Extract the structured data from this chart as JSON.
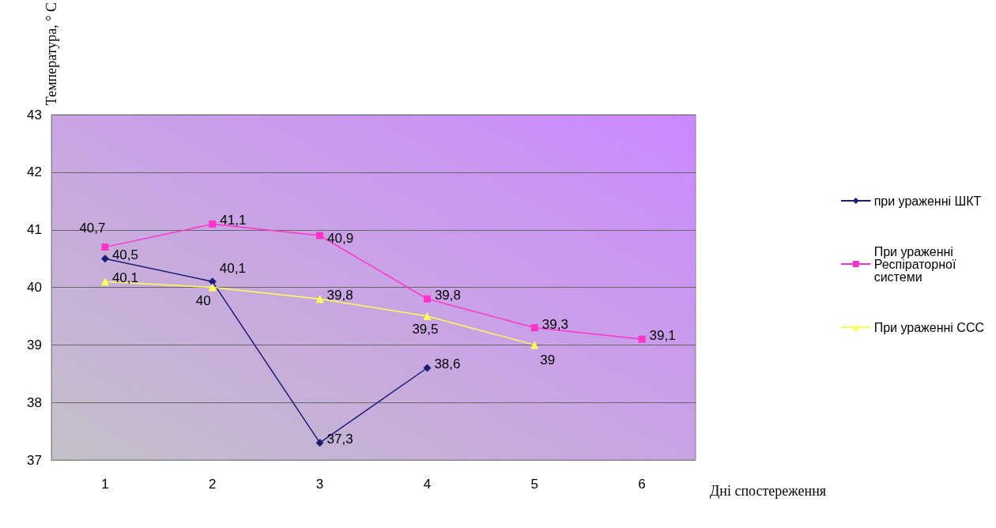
{
  "chart_data": {
    "type": "line",
    "xlabel": "Дні спостереження",
    "ylabel": "Температура, ° C",
    "categories": [
      "1",
      "2",
      "3",
      "4",
      "5",
      "6"
    ],
    "series": [
      {
        "name": "при ураженні ШКТ",
        "color": "#1c1c78",
        "marker": "diamond",
        "values": [
          40.5,
          40.1,
          37.3,
          38.6,
          null,
          null
        ],
        "value_labels": [
          "40,5",
          "40,1",
          "37,3",
          "38,6",
          null,
          null
        ]
      },
      {
        "name": "При ураженні Респіраторної системи",
        "color": "#ff33cc",
        "marker": "square",
        "values": [
          40.7,
          41.1,
          40.9,
          39.8,
          39.3,
          39.1
        ],
        "value_labels": [
          "40,7",
          "41,1",
          "40,9",
          "39,8",
          "39,3",
          "39,1"
        ]
      },
      {
        "name": "При ураженні ССС",
        "color": "#ffff55",
        "marker": "triangle",
        "values": [
          40.1,
          40,
          39.8,
          39.5,
          39,
          null
        ],
        "value_labels": [
          "40,1",
          "40",
          "39,8",
          "39,5",
          "39",
          null
        ]
      }
    ],
    "ylim": [
      37,
      43
    ],
    "yticks": [
      37,
      38,
      39,
      40,
      41,
      42,
      43
    ],
    "grid": "y",
    "legend": "right",
    "line_style": "solid"
  }
}
